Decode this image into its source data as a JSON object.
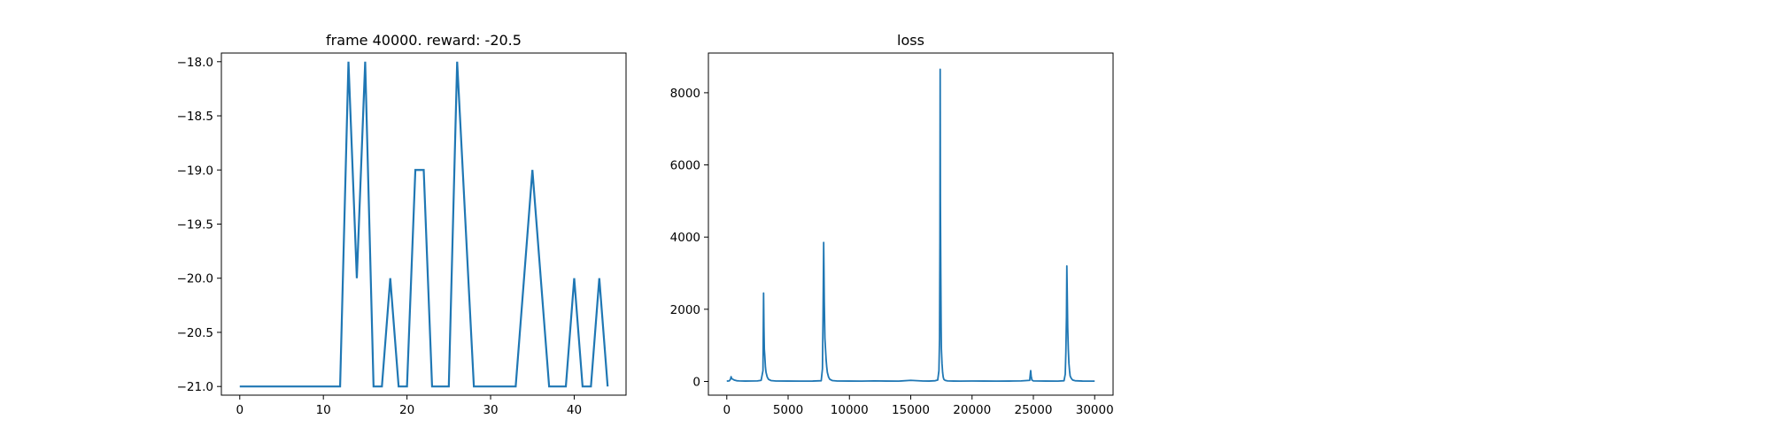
{
  "figure": {
    "background": "#ffffff",
    "line_color": "#1f77b4"
  },
  "chart_data": [
    {
      "type": "line",
      "title": "frame 40000. reward: -20.5",
      "xlabel": "",
      "ylabel": "",
      "xlim": [
        -2.2,
        46.2
      ],
      "ylim": [
        -21.08,
        -17.92
      ],
      "xticks": [
        0,
        10,
        20,
        30,
        40
      ],
      "yticks": [
        -18.0,
        -18.5,
        -19.0,
        -19.5,
        -20.0,
        -20.5,
        -21.0
      ],
      "ytick_labels": [
        "−18.0",
        "−18.5",
        "−19.0",
        "−19.5",
        "−20.0",
        "−20.5",
        "−21.0"
      ],
      "grid": false,
      "legend": "none",
      "series": [
        {
          "x": [
            0,
            1,
            2,
            3,
            4,
            5,
            6,
            7,
            8,
            9,
            10,
            11,
            12,
            13,
            14,
            15,
            16,
            17,
            18,
            19,
            20,
            21,
            22,
            23,
            24,
            25,
            26,
            27,
            28,
            29,
            30,
            31,
            32,
            33,
            34,
            35,
            36,
            37,
            38,
            39,
            40,
            41,
            42,
            43,
            44
          ],
          "values": [
            -21,
            -21,
            -21,
            -21,
            -21,
            -21,
            -21,
            -21,
            -21,
            -21,
            -21,
            -21,
            -21,
            -18,
            -20,
            -18,
            -21,
            -21,
            -20,
            -21,
            -21,
            -19,
            -19,
            -21,
            -21,
            -21,
            -18,
            -19.5,
            -21,
            -21,
            -21,
            -21,
            -21,
            -21,
            -20,
            -19,
            -20,
            -21,
            -21,
            -21,
            -20,
            -21,
            -21,
            -20,
            -21
          ]
        }
      ]
    },
    {
      "type": "line",
      "title": "loss",
      "xlabel": "",
      "ylabel": "",
      "xlim": [
        -1500,
        31500
      ],
      "ylim": [
        -380,
        9100
      ],
      "xticks": [
        0,
        5000,
        10000,
        15000,
        20000,
        25000,
        30000
      ],
      "yticks": [
        0,
        2000,
        4000,
        6000,
        8000
      ],
      "grid": false,
      "legend": "none",
      "series": [
        {
          "x": [
            0,
            200,
            300,
            350,
            400,
            600,
            800,
            1000,
            1500,
            2000,
            2500,
            2800,
            2950,
            3000,
            3030,
            3060,
            3100,
            3150,
            3200,
            3300,
            3400,
            3600,
            4000,
            5000,
            6000,
            7000,
            7700,
            7800,
            7850,
            7900,
            7950,
            8000,
            8050,
            8100,
            8150,
            8200,
            8300,
            8400,
            8600,
            9000,
            10000,
            11000,
            12000,
            13000,
            14000,
            15000,
            16000,
            16500,
            17000,
            17200,
            17300,
            17350,
            17380,
            17400,
            17420,
            17450,
            17480,
            17500,
            17550,
            17600,
            17650,
            17700,
            17800,
            18000,
            18500,
            19000,
            20000,
            21000,
            22000,
            23000,
            24000,
            24700,
            24780,
            24820,
            24880,
            25000,
            26000,
            27000,
            27500,
            27600,
            27650,
            27700,
            27730,
            27760,
            27800,
            27850,
            27900,
            27950,
            28000,
            28100,
            28200,
            28400,
            29000,
            30000
          ],
          "values": [
            10,
            15,
            60,
            130,
            80,
            40,
            20,
            15,
            10,
            12,
            15,
            30,
            300,
            2450,
            1500,
            900,
            700,
            400,
            250,
            120,
            60,
            25,
            12,
            10,
            8,
            10,
            20,
            350,
            1800,
            3850,
            2200,
            1200,
            900,
            600,
            400,
            250,
            120,
            60,
            25,
            12,
            10,
            8,
            15,
            10,
            9,
            30,
            12,
            10,
            20,
            40,
            300,
            1200,
            3900,
            8650,
            5000,
            3000,
            1500,
            900,
            500,
            250,
            120,
            60,
            30,
            15,
            10,
            8,
            12,
            10,
            8,
            10,
            15,
            30,
            300,
            150,
            40,
            15,
            10,
            8,
            20,
            200,
            800,
            1800,
            3200,
            2500,
            1500,
            900,
            500,
            300,
            150,
            80,
            40,
            20,
            10,
            8
          ]
        }
      ]
    }
  ]
}
